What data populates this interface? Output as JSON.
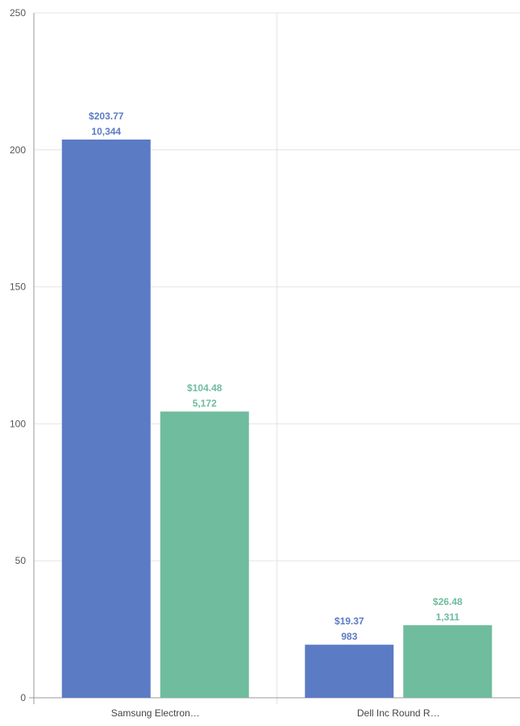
{
  "chart_data": {
    "type": "bar",
    "categories": [
      "Samsung Electron…",
      "Dell Inc Round R…"
    ],
    "series": [
      {
        "values": [
          203.77,
          19.37
        ],
        "value_labels": [
          "$203.77",
          "$19.37"
        ],
        "count_labels": [
          "10,344",
          "983"
        ],
        "color": "#5b7bc4"
      },
      {
        "values": [
          104.48,
          26.48
        ],
        "value_labels": [
          "$104.48",
          "$26.48"
        ],
        "count_labels": [
          "5,172",
          "1,311"
        ],
        "color": "#6fbc9e"
      }
    ],
    "yticks": [
      "0",
      "50",
      "100",
      "150",
      "200",
      "250"
    ],
    "ylim": [
      0,
      250
    ],
    "xlabel": "",
    "ylabel": "",
    "title": "",
    "grid": true,
    "legend": "none",
    "colors": {
      "grid": "#e4e4e4",
      "axis": "#999999"
    }
  }
}
